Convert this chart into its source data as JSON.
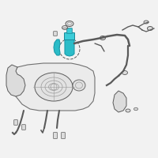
{
  "bg_color": "#f2f2f2",
  "highlight_color": "#2bbcc8",
  "line_color": "#5a5a5a",
  "light_line_color": "#9a9a9a",
  "tank_fill": "#ebebeb",
  "tank_stroke": "#707070",
  "part_fill": "#dcdcdc",
  "white": "#ffffff"
}
